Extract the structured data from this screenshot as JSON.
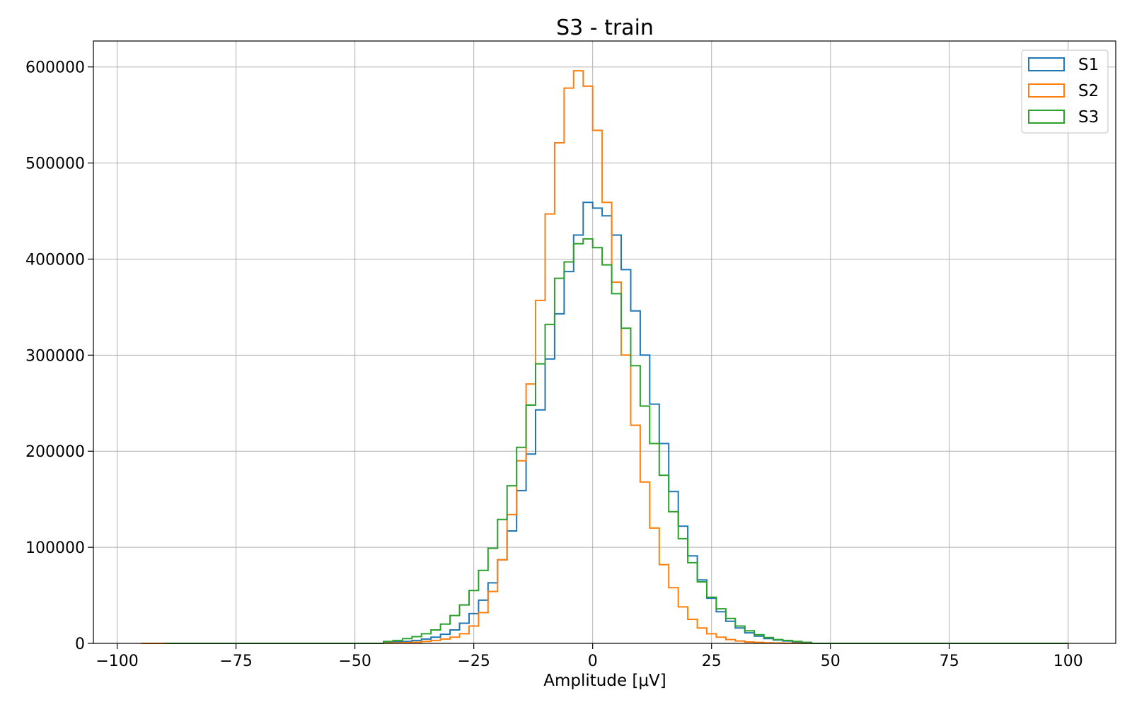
{
  "chart_data": {
    "type": "histogram",
    "title": "S3 - train",
    "xlabel": "Amplitude [μV]",
    "ylabel": "",
    "xlim": [
      -105,
      110
    ],
    "ylim": [
      0,
      627000
    ],
    "x_ticks": [
      -100,
      -75,
      -50,
      -25,
      0,
      25,
      50,
      75,
      100
    ],
    "x_tick_labels": [
      "−100",
      "−75",
      "−50",
      "−25",
      "0",
      "25",
      "50",
      "75",
      "100"
    ],
    "y_ticks": [
      0,
      100000,
      200000,
      300000,
      400000,
      500000,
      600000
    ],
    "y_tick_labels": [
      "0",
      "100000",
      "200000",
      "300000",
      "400000",
      "500000",
      "600000"
    ],
    "grid": true,
    "legend_position": "top-right",
    "bin_edges": [
      -44,
      -42,
      -40,
      -38,
      -36,
      -34,
      -32,
      -30,
      -28,
      -26,
      -24,
      -22,
      -20,
      -18,
      -16,
      -14,
      -12,
      -10,
      -8,
      -6,
      -4,
      -2,
      0,
      2,
      4,
      6,
      8,
      10,
      12,
      14,
      16,
      18,
      20,
      22,
      24,
      26,
      28,
      30,
      32,
      34,
      36,
      38,
      40,
      42,
      44,
      46
    ],
    "series": [
      {
        "name": "S1",
        "color": "#1f77b4",
        "support": [
          -93,
          100
        ],
        "values": [
          1000,
          1500,
          2000,
          3000,
          4500,
          6500,
          9500,
          14000,
          21000,
          31000,
          45000,
          63000,
          87000,
          117000,
          159000,
          197000,
          243000,
          296000,
          343000,
          387000,
          425000,
          459000,
          453000,
          445000,
          425000,
          389000,
          346000,
          300000,
          249000,
          208000,
          158000,
          122000,
          91000,
          66000,
          47000,
          33000,
          23000,
          16000,
          11000,
          7500,
          5000,
          3500,
          2500,
          1500,
          1000
        ]
      },
      {
        "name": "S2",
        "color": "#ff7f0e",
        "support": [
          -95,
          100
        ],
        "values": [
          300,
          500,
          800,
          1200,
          2000,
          3000,
          4500,
          6500,
          10000,
          18000,
          32000,
          54000,
          87000,
          134000,
          190000,
          270000,
          357000,
          447000,
          521000,
          578000,
          596000,
          580000,
          534000,
          459000,
          376000,
          300000,
          227000,
          168000,
          120000,
          82000,
          58000,
          38000,
          25000,
          16000,
          10000,
          6500,
          4000,
          2500,
          1500,
          1000,
          600,
          400,
          250,
          150,
          100
        ]
      },
      {
        "name": "S3",
        "color": "#2ca02c",
        "support": [
          -90,
          100
        ],
        "values": [
          2000,
          3000,
          5000,
          7000,
          10000,
          14000,
          20000,
          29000,
          40000,
          55000,
          76000,
          99000,
          129000,
          164000,
          204000,
          248000,
          291000,
          332000,
          380000,
          397000,
          416000,
          421000,
          412000,
          394000,
          364000,
          328000,
          289000,
          247000,
          208000,
          175000,
          137000,
          109000,
          84000,
          64000,
          48000,
          36000,
          26000,
          18000,
          13000,
          9000,
          6000,
          4000,
          3000,
          2000,
          1000
        ]
      }
    ]
  }
}
